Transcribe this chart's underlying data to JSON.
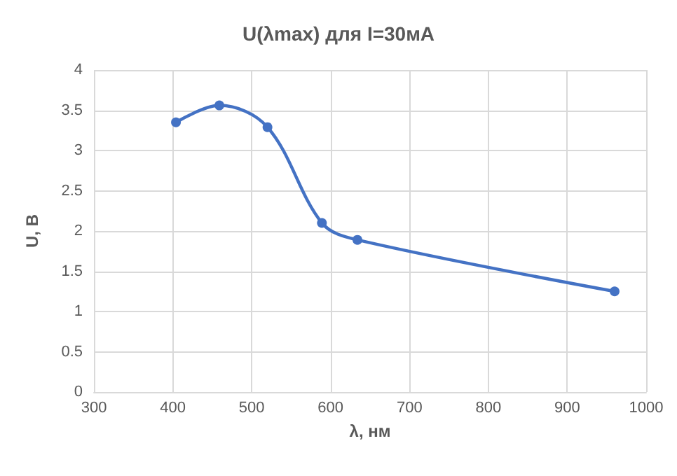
{
  "chart_data": {
    "type": "line",
    "title": "U(λmax) для I=30мА",
    "xlabel": "λ, нм",
    "ylabel": "U, В",
    "x": [
      404,
      459,
      520,
      589,
      634,
      960
    ],
    "series": [
      {
        "color": "#4472c4",
        "values": [
          3.35,
          3.56,
          3.29,
          2.1,
          1.89,
          1.25
        ]
      }
    ],
    "xlim": [
      300,
      1000
    ],
    "xticks": [
      300,
      400,
      500,
      600,
      700,
      800,
      900,
      1000
    ],
    "ylim": [
      0,
      4
    ],
    "yticks": [
      0,
      0.5,
      1,
      1.5,
      2,
      2.5,
      3,
      3.5,
      4
    ],
    "grid": true,
    "marker": "circle",
    "line_style": "solid"
  }
}
